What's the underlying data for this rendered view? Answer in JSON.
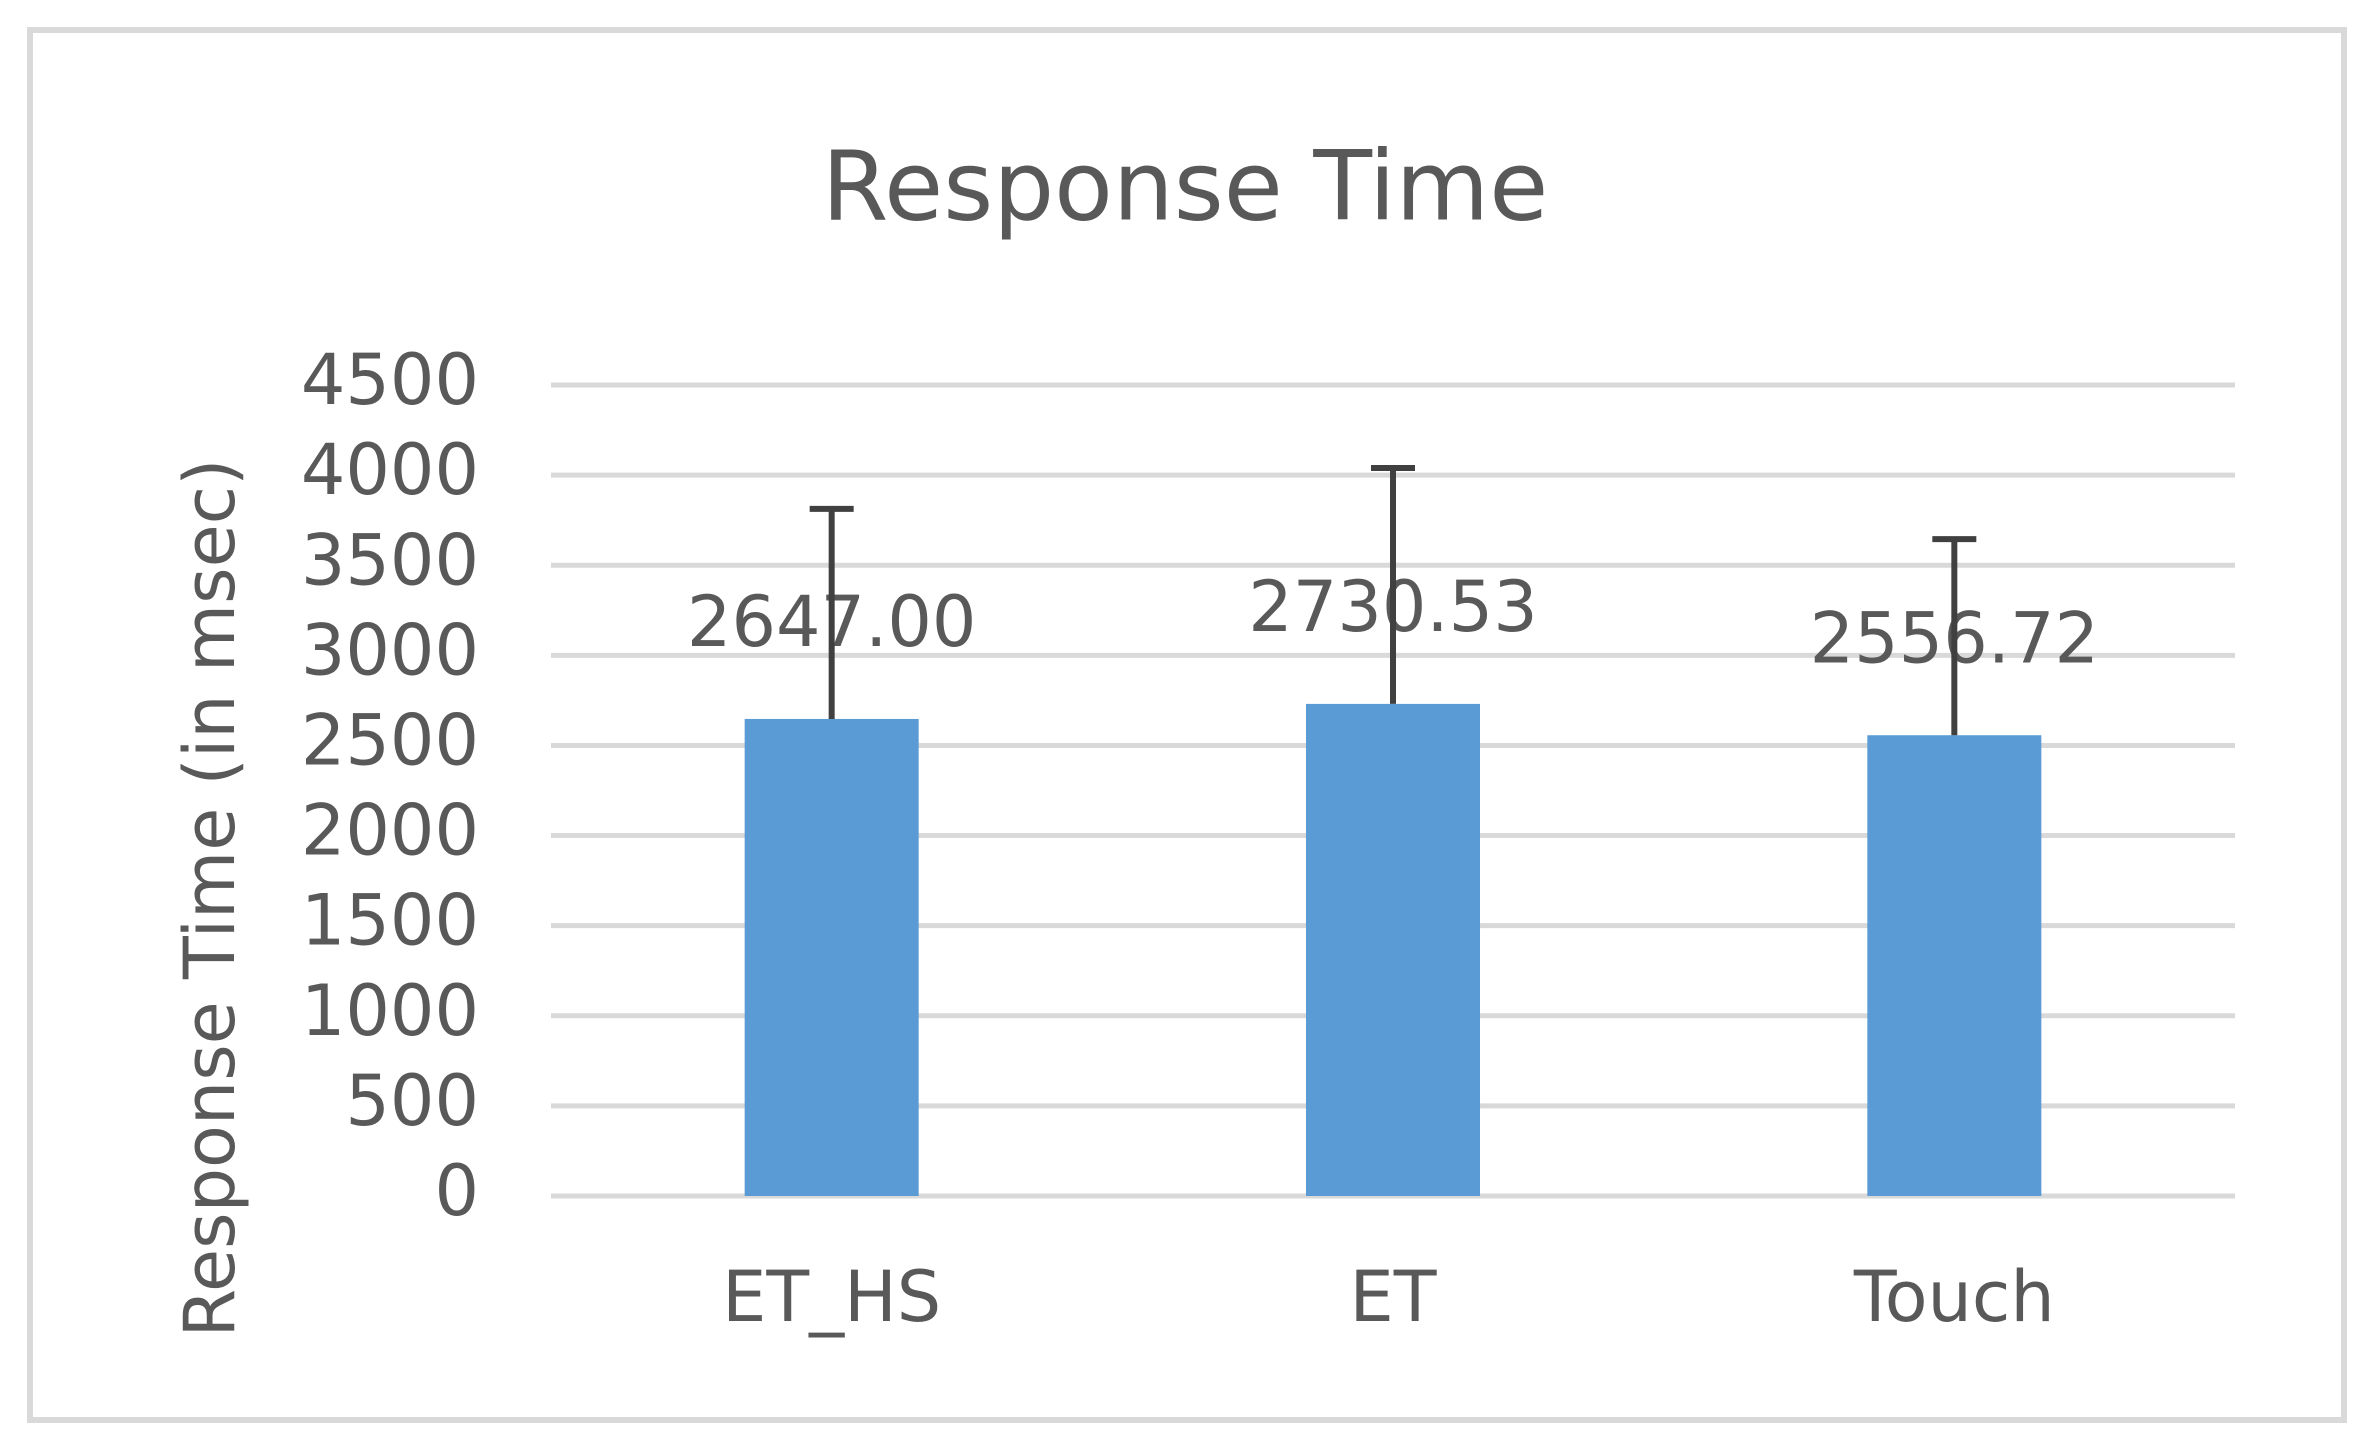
{
  "chart_data": {
    "type": "bar",
    "title": "Response Time",
    "y_label": "Response Time (in msec)",
    "categories": [
      "ET_HS",
      "ET",
      "Touch"
    ],
    "values": [
      2647.0,
      2730.53,
      2556.72
    ],
    "value_labels": [
      "2647.00",
      "2730.53",
      "2556.72"
    ],
    "errors": [
      1166,
      1309,
      1088
    ],
    "color": "#5b9bd5",
    "ylim": [
      0,
      4500
    ],
    "yticks": [
      0,
      500,
      1000,
      1500,
      2000,
      2500,
      3000,
      3500,
      4000,
      4500
    ],
    "grid": true
  }
}
